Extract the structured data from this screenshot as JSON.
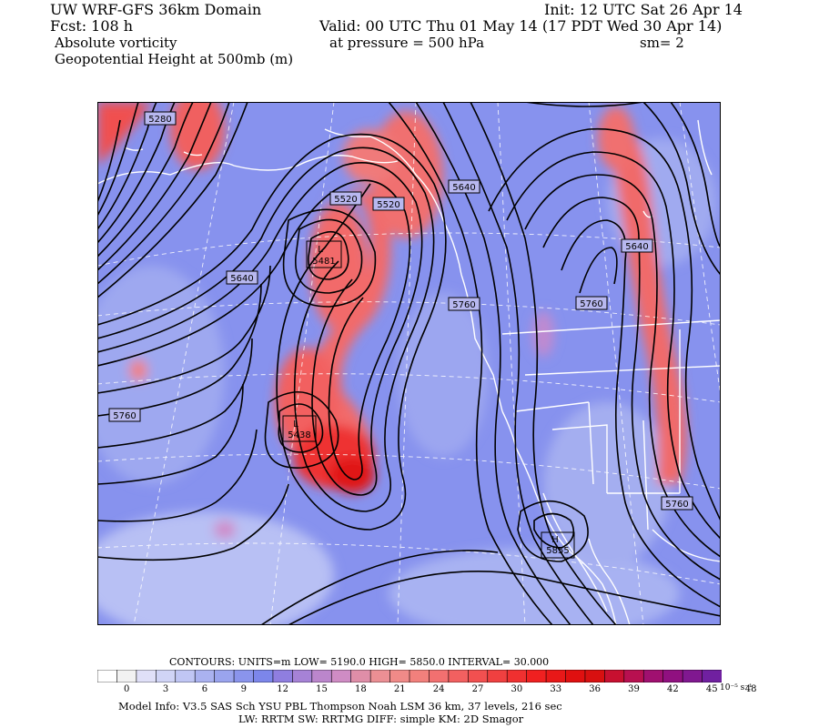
{
  "header": {
    "title": "UW WRF-GFS 36km Domain",
    "init": "Init: 12 UTC Sat 26 Apr 14",
    "fcst": "Fcst:  108 h",
    "valid": "Valid: 00 UTC Thu 01 May 14 (17 PDT Wed 30 Apr 14)",
    "field1": "Absolute vorticity",
    "pressure": "at pressure =  500 hPa",
    "smooth": "sm= 2",
    "field2": "Geopotential Height at 500mb (m)"
  },
  "map": {
    "contour_labels": [
      "5280",
      "5520",
      "5520",
      "5640",
      "5640",
      "5640",
      "5760",
      "5760",
      "5760",
      "5760"
    ],
    "lows": [
      {
        "symbol": "L",
        "value": "5481"
      },
      {
        "symbol": "L",
        "value": "5438"
      }
    ],
    "highs": [
      {
        "symbol": "H",
        "value": "5855"
      }
    ],
    "colors": {
      "land_lines": "#ffffff",
      "contours": "#000000",
      "background_vorticity": "#8090ee",
      "max_vorticity": "#e01010"
    }
  },
  "footer": {
    "contours_line": "CONTOURS:  UNITS=m  LOW=   5190.0      HIGH=  5850.0      INTERVAL=    30.000",
    "colorbar_ticks": [
      "0",
      "3",
      "6",
      "9",
      "12",
      "15",
      "18",
      "21",
      "24",
      "27",
      "30",
      "33",
      "36",
      "39",
      "42",
      "45",
      "48"
    ],
    "colorbar_unit": "10⁻⁵ s⁻¹",
    "colorbar_colors": [
      "#ffffff",
      "#f2f2f2",
      "#e0e0f8",
      "#d0d4f6",
      "#c0c6f4",
      "#aab2f0",
      "#9aa4ee",
      "#8a94ec",
      "#7c86ea",
      "#8f7ee0",
      "#a682d6",
      "#bb86cc",
      "#cf8cc4",
      "#df8ea8",
      "#eb8f94",
      "#f08a88",
      "#f2807c",
      "#f27070",
      "#f26060",
      "#f25050",
      "#f04040",
      "#f03030",
      "#f02020",
      "#e81818",
      "#e01010",
      "#d81010",
      "#c81030",
      "#b81050",
      "#a01070",
      "#901080",
      "#801890",
      "#7020a0"
    ],
    "model_info1": "Model Info: V3.5     SAS Sch  YSU PBL  Thompson     Noah LSM  36 km,    37 levels,  216 sec",
    "model_info2": "LW: RRTM  SW: RRTMG    DIFF: simple  KM: 2D Smagor"
  }
}
